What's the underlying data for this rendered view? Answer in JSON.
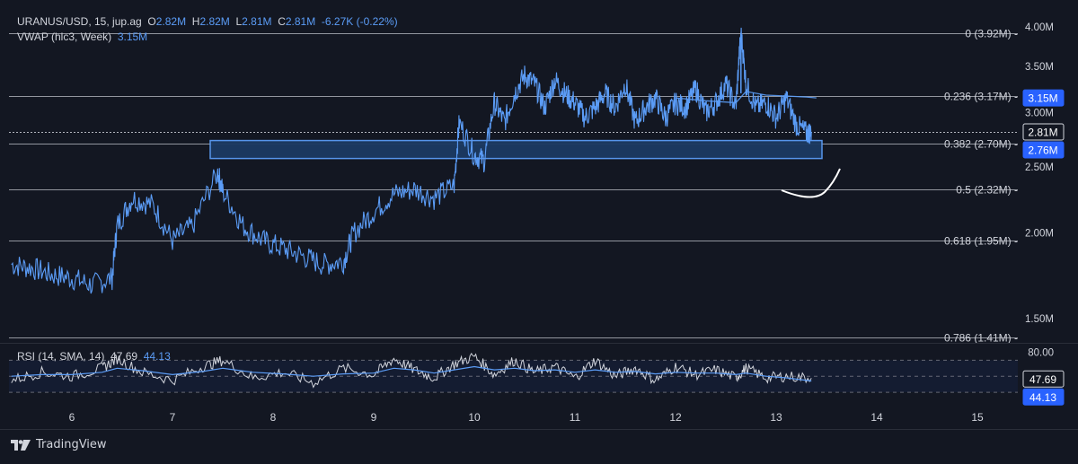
{
  "header": {
    "symbol": "URANUS/USD, 15, jup.ag",
    "o_label": "O",
    "o": "2.82M",
    "h_label": "H",
    "h": "2.82M",
    "l_label": "L",
    "l": "2.81M",
    "c_label": "C",
    "c": "2.81M",
    "change": "-6.27K (-0.22%)",
    "vwap_label": "VWAP (hlc3, Week)",
    "vwap_value": "3.15M",
    "rsi_label": "RSI (14, SMA, 14)",
    "rsi_value": "47.69",
    "rsi_sma_value": "44.13"
  },
  "brand": {
    "name": "TradingView",
    "icon": "tradingview-logo-icon"
  },
  "colors": {
    "background": "#131722",
    "price": "#5b9cf6",
    "price_dark": "#2962ff",
    "text": "#d1d4dc",
    "fib_line": "#b2b5be",
    "zone_fill": "#1c3a63",
    "zone_border": "#5b9cf6",
    "badge": "#2962ff",
    "last_badge": "#131722"
  },
  "chart_data": [
    {
      "type": "line",
      "name": "price",
      "ylim": [
        1.4,
        4.06
      ],
      "log_scale": true,
      "x_ticks": [
        "6",
        "7",
        "8",
        "9",
        "10",
        "11",
        "12",
        "13",
        "14",
        "15"
      ],
      "y_ticks": [
        "4.00M",
        "3.50M",
        "3.00M",
        "2.50M",
        "2.00M",
        "1.50M"
      ],
      "x": [
        5.4,
        5.6,
        5.8,
        6.0,
        6.2,
        6.4,
        6.45,
        6.6,
        6.8,
        7.0,
        7.2,
        7.45,
        7.5,
        7.7,
        7.9,
        8.1,
        8.3,
        8.5,
        8.7,
        8.8,
        9.0,
        9.2,
        9.4,
        9.6,
        9.8,
        9.85,
        10.0,
        10.1,
        10.2,
        10.3,
        10.4,
        10.5,
        10.6,
        10.7,
        10.8,
        10.9,
        11.0,
        11.1,
        11.2,
        11.3,
        11.4,
        11.5,
        11.6,
        11.7,
        11.8,
        11.9,
        12.0,
        12.1,
        12.2,
        12.3,
        12.4,
        12.5,
        12.6,
        12.65,
        12.7,
        12.8,
        12.9,
        13.0,
        13.1,
        13.2,
        13.3,
        13.35
      ],
      "y": [
        1.8,
        1.78,
        1.74,
        1.72,
        1.68,
        1.72,
        2.05,
        2.25,
        2.2,
        1.95,
        2.05,
        2.45,
        2.3,
        2.05,
        1.95,
        1.9,
        1.85,
        1.8,
        1.82,
        2.0,
        2.15,
        2.28,
        2.32,
        2.25,
        2.35,
        2.9,
        2.6,
        2.55,
        3.1,
        2.9,
        3.2,
        3.4,
        3.3,
        3.05,
        3.35,
        3.2,
        3.1,
        2.95,
        3.05,
        3.2,
        3.05,
        3.3,
        2.9,
        3.05,
        3.15,
        2.95,
        3.1,
        3.05,
        3.25,
        3.0,
        3.1,
        3.3,
        3.05,
        3.92,
        3.3,
        3.05,
        3.1,
        2.95,
        3.15,
        2.88,
        2.8,
        2.81
      ],
      "last_value_label": "2.81M"
    },
    {
      "type": "line",
      "name": "VWAP",
      "x": [
        12.0,
        12.3,
        12.6,
        12.7,
        12.9,
        13.1,
        13.3,
        13.4
      ],
      "y": [
        3.15,
        3.12,
        3.1,
        3.22,
        3.18,
        3.17,
        3.16,
        3.15
      ],
      "value_label": "3.15M"
    },
    {
      "type": "fibonacci",
      "levels": [
        {
          "label": "0 (3.92M)",
          "value": 3.92
        },
        {
          "label": "0.236 (3.17M)",
          "value": 3.17
        },
        {
          "label": "0.382 (2.70M)",
          "value": 2.7
        },
        {
          "label": "0.5 (2.32M)",
          "value": 2.32
        },
        {
          "label": "0.618 (1.95M)",
          "value": 1.95
        },
        {
          "label": "0.786 (1.41M)",
          "value": 1.41
        }
      ],
      "marker_label": "2.76M",
      "marker_value": 2.76
    },
    {
      "type": "area",
      "name": "support-zone",
      "x_range": [
        7.5,
        13.5
      ],
      "y_range": [
        2.57,
        2.73
      ]
    },
    {
      "type": "line",
      "name": "RSI",
      "ylim": [
        20,
        85
      ],
      "y_ticks": [
        "80.00"
      ],
      "bands": [
        70,
        30
      ],
      "midline": 50,
      "x": [
        5.4,
        5.7,
        6.0,
        6.3,
        6.45,
        6.7,
        7.0,
        7.3,
        7.5,
        7.8,
        8.1,
        8.4,
        8.7,
        9.0,
        9.2,
        9.4,
        9.6,
        9.8,
        10.0,
        10.2,
        10.4,
        10.6,
        10.8,
        11.0,
        11.2,
        11.4,
        11.6,
        11.8,
        12.0,
        12.2,
        12.4,
        12.6,
        12.7,
        12.9,
        13.1,
        13.35
      ],
      "y": [
        45,
        55,
        50,
        60,
        72,
        55,
        45,
        62,
        70,
        48,
        55,
        42,
        60,
        52,
        72,
        58,
        48,
        65,
        75,
        52,
        70,
        55,
        62,
        48,
        70,
        50,
        60,
        45,
        62,
        52,
        58,
        48,
        60,
        48,
        50,
        47.69
      ],
      "sma": [
        50,
        52,
        52,
        55,
        60,
        57,
        52,
        56,
        60,
        55,
        53,
        50,
        53,
        54,
        60,
        58,
        54,
        58,
        62,
        58,
        60,
        57,
        58,
        55,
        58,
        55,
        56,
        53,
        55,
        54,
        54,
        52,
        54,
        50,
        48,
        44.13
      ],
      "value_label": "47.69",
      "sma_label": "44.13"
    }
  ]
}
